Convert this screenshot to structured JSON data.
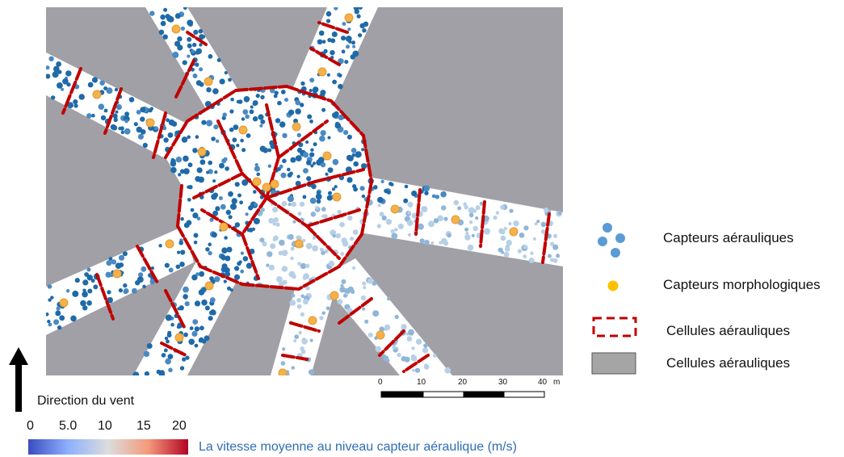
{
  "legend": {
    "items": [
      {
        "icon": "blue-dots-icon",
        "label": "Capteurs aérauliques",
        "color": "#5b9bd5"
      },
      {
        "icon": "orange-dot-icon",
        "label": "Capteurs morphologiques",
        "color": "#ffc000"
      },
      {
        "icon": "red-dashed-rect-icon",
        "label": "Cellules aérauliques",
        "color": "#c00000"
      },
      {
        "icon": "gray-rect-icon",
        "label": "Cellules aérauliques",
        "color": "#a5a5a5"
      }
    ]
  },
  "scale_bar": {
    "labels": [
      "0",
      "10",
      "20",
      "30",
      "40"
    ],
    "unit": "m"
  },
  "wind": {
    "label": "Direction du vent",
    "icon": "north-arrow-icon"
  },
  "colorbar": {
    "ticks": [
      "0",
      "5.0",
      "10",
      "15",
      "20"
    ],
    "title": "La vitesse moyenne au niveau capteur aéraulique (m/s)",
    "colors": [
      "#3b4cc0",
      "#8db0fe",
      "#dddddd",
      "#f49a7b",
      "#b40426"
    ]
  },
  "palette": {
    "building": "#a1a0a6",
    "street": "#ffffff",
    "cell_border": "#c00000",
    "sensor_dark": "#1f6aa8",
    "sensor_light": "#b7d0e6",
    "morph_sensor": "#f5b14a"
  }
}
